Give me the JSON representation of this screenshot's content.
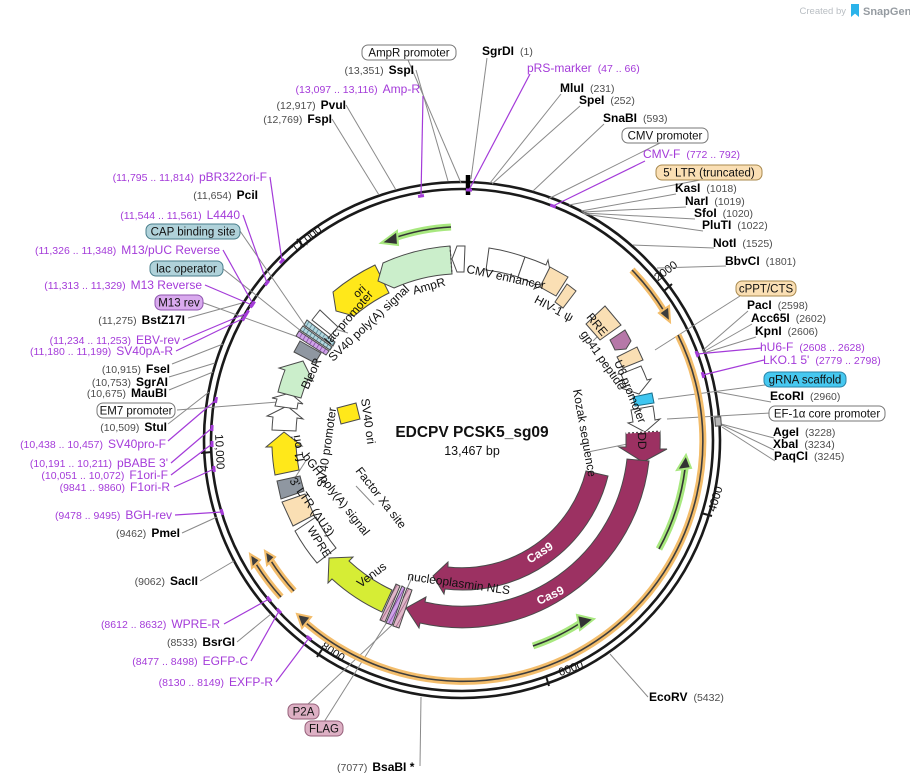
{
  "watermark": {
    "prefix": "Created by",
    "brand": "SnapGene"
  },
  "plasmid": {
    "name": "EDCPV PCSK5_sg09",
    "size_label": "13,467 bp"
  },
  "ruler_ticks": {
    "t2000": "2000",
    "t4000": "4000",
    "t6000": "6000",
    "t8000": "8000",
    "t10000": "10,000",
    "t12000": "12,000"
  },
  "enzymes": {
    "sspi": {
      "pos": "(13,351)",
      "name": "SspI"
    },
    "pvui": {
      "pos": "(12,917)",
      "name": "PvuI"
    },
    "fspi": {
      "pos": "(12,769)",
      "name": "FspI"
    },
    "sgrdi": {
      "name": "SgrDI",
      "pos": "(1)"
    },
    "mlui": {
      "name": "MluI",
      "pos": "(231)"
    },
    "spei": {
      "name": "SpeI",
      "pos": "(252)"
    },
    "snabi": {
      "name": "SnaBI",
      "pos": "(593)"
    },
    "kasi": {
      "name": "KasI",
      "pos": "(1018)"
    },
    "nari": {
      "name": "NarI",
      "pos": "(1019)"
    },
    "sfoi": {
      "name": "SfoI",
      "pos": "(1020)"
    },
    "pluti": {
      "name": "PluTI",
      "pos": "(1022)"
    },
    "noti": {
      "name": "NotI",
      "pos": "(1525)"
    },
    "bbvci": {
      "name": "BbvCI",
      "pos": "(1801)"
    },
    "paci": {
      "name": "PacI",
      "pos": "(2598)"
    },
    "acc65i": {
      "name": "Acc65I",
      "pos": "(2602)"
    },
    "kpni": {
      "name": "KpnI",
      "pos": "(2606)"
    },
    "ecori": {
      "name": "EcoRI",
      "pos": "(2960)"
    },
    "agei": {
      "name": "AgeI",
      "pos": "(3228)"
    },
    "xbai": {
      "name": "XbaI",
      "pos": "(3234)"
    },
    "paqci": {
      "name": "PaqCI",
      "pos": "(3245)"
    },
    "ecorv": {
      "name": "EcoRV",
      "pos": "(5432)"
    },
    "bsabi": {
      "pos": "(7077)",
      "name": "BsaBI *"
    },
    "bsrgi": {
      "pos": "(8533)",
      "name": "BsrGI"
    },
    "sacii": {
      "pos": "(9062)",
      "name": "SacII"
    },
    "pmei": {
      "pos": "(9462)",
      "name": "PmeI"
    },
    "stui": {
      "pos": "(10,509)",
      "name": "StuI"
    },
    "maubi": {
      "pos": "(10,675)",
      "name": "MauBI"
    },
    "sgrai": {
      "pos": "(10,753)",
      "name": "SgrAI"
    },
    "fsei": {
      "pos": "(10,915)",
      "name": "FseI"
    },
    "bstz17i": {
      "pos": "(11,275)",
      "name": "BstZ17I"
    },
    "pcii": {
      "pos": "(11,654)",
      "name": "PciI"
    }
  },
  "primers": {
    "amp_r": {
      "range": "(13,097 .. 13,116)",
      "name": "Amp-R"
    },
    "prs": {
      "name": "pRS-marker",
      "range": "(47 .. 66)"
    },
    "cmv_f": {
      "name": "CMV-F",
      "range": "(772 .. 792)"
    },
    "hu6_f": {
      "name": "hU6-F",
      "range": "(2608 .. 2628)"
    },
    "lko": {
      "name": "LKO.1 5'",
      "range": "(2779 .. 2798)"
    },
    "exfp_r": {
      "range": "(8130 .. 8149)",
      "name": "EXFP-R"
    },
    "egfp_c": {
      "range": "(8477 .. 8498)",
      "name": "EGFP-C"
    },
    "wpre_r": {
      "range": "(8612 .. 8632)",
      "name": "WPRE-R"
    },
    "bgh_rev": {
      "range": "(9478 .. 9495)",
      "name": "BGH-rev"
    },
    "f1ori_r": {
      "range": "(9841 .. 9860)",
      "name": "F1ori-R"
    },
    "f1ori_f": {
      "range": "(10,051 .. 10,072)",
      "name": "F1ori-F"
    },
    "pbabe": {
      "range": "(10,191 .. 10,211)",
      "name": "pBABE 3'"
    },
    "sv40pro_f": {
      "range": "(10,438 .. 10,457)",
      "name": "SV40pro-F"
    },
    "sv40pa_r": {
      "range": "(11,180 .. 11,199)",
      "name": "SV40pA-R"
    },
    "ebv_rev": {
      "range": "(11,234 .. 11,253)",
      "name": "EBV-rev"
    },
    "m13_reverse": {
      "range": "(11,313 .. 11,329)",
      "name": "M13 Reverse"
    },
    "m13puc": {
      "range": "(11,326 .. 11,348)",
      "name": "M13/pUC Reverse"
    },
    "l4440": {
      "range": "(11,544 .. 11,561)",
      "name": "L4440"
    },
    "pbr322": {
      "range": "(11,795 .. 11,814)",
      "name": "pBR322ori-F"
    }
  },
  "boxed_labels": {
    "ampr_promoter": "AmpR promoter",
    "cmv_promoter": "CMV promoter",
    "ltr5": "5' LTR (truncated)",
    "cppt": "cPPT/CTS",
    "grna": "gRNA scaffold",
    "ef1a": "EF-1α core promoter",
    "em7": "EM7 promoter",
    "m13rev": "M13 rev",
    "lac_operator": "lac operator",
    "cap": "CAP binding site",
    "p2a": "P2A",
    "flag": "FLAG"
  },
  "feature_labels": {
    "cmv_enhancer": "CMV enhancer",
    "hiv_psi": "HIV-1 ψ",
    "rre": "RRE",
    "gp41": "gp41 peptide",
    "u6": "U6 promoter",
    "kozak": "Kozak sequence",
    "dd": "DD",
    "cas9": "Cas9",
    "nls": "nucleoplasmin NLS",
    "venus": "Venus",
    "wpre": "WPRE",
    "ltr3": "3' LTR (ΔU3)",
    "bgh": "bGH poly(A) signal",
    "factor_xa": "Factor Xa site",
    "sv40_ori": "SV40 ori",
    "f1_ori": "f1 ori",
    "sv40_promoter": "SV40 promoter",
    "bleor": "BleoR",
    "sv40_pa": "SV40 poly(A) signal",
    "lac_promoter": "lac promoter",
    "ori": "ori",
    "ampr": "AmpR"
  },
  "colors": {
    "primer_purple": "#a43bd9",
    "cds_maroon": "#9c3162",
    "venus_green": "#d6ed35",
    "light_green": "#cbeecb",
    "yellow": "#ffe81a",
    "tan": "#fadfb4",
    "gray_box": "#8f97a1",
    "cyan": "#3fc6f0",
    "orange_orf": "#f3bd6b",
    "green_orf": "#a8e87f"
  }
}
